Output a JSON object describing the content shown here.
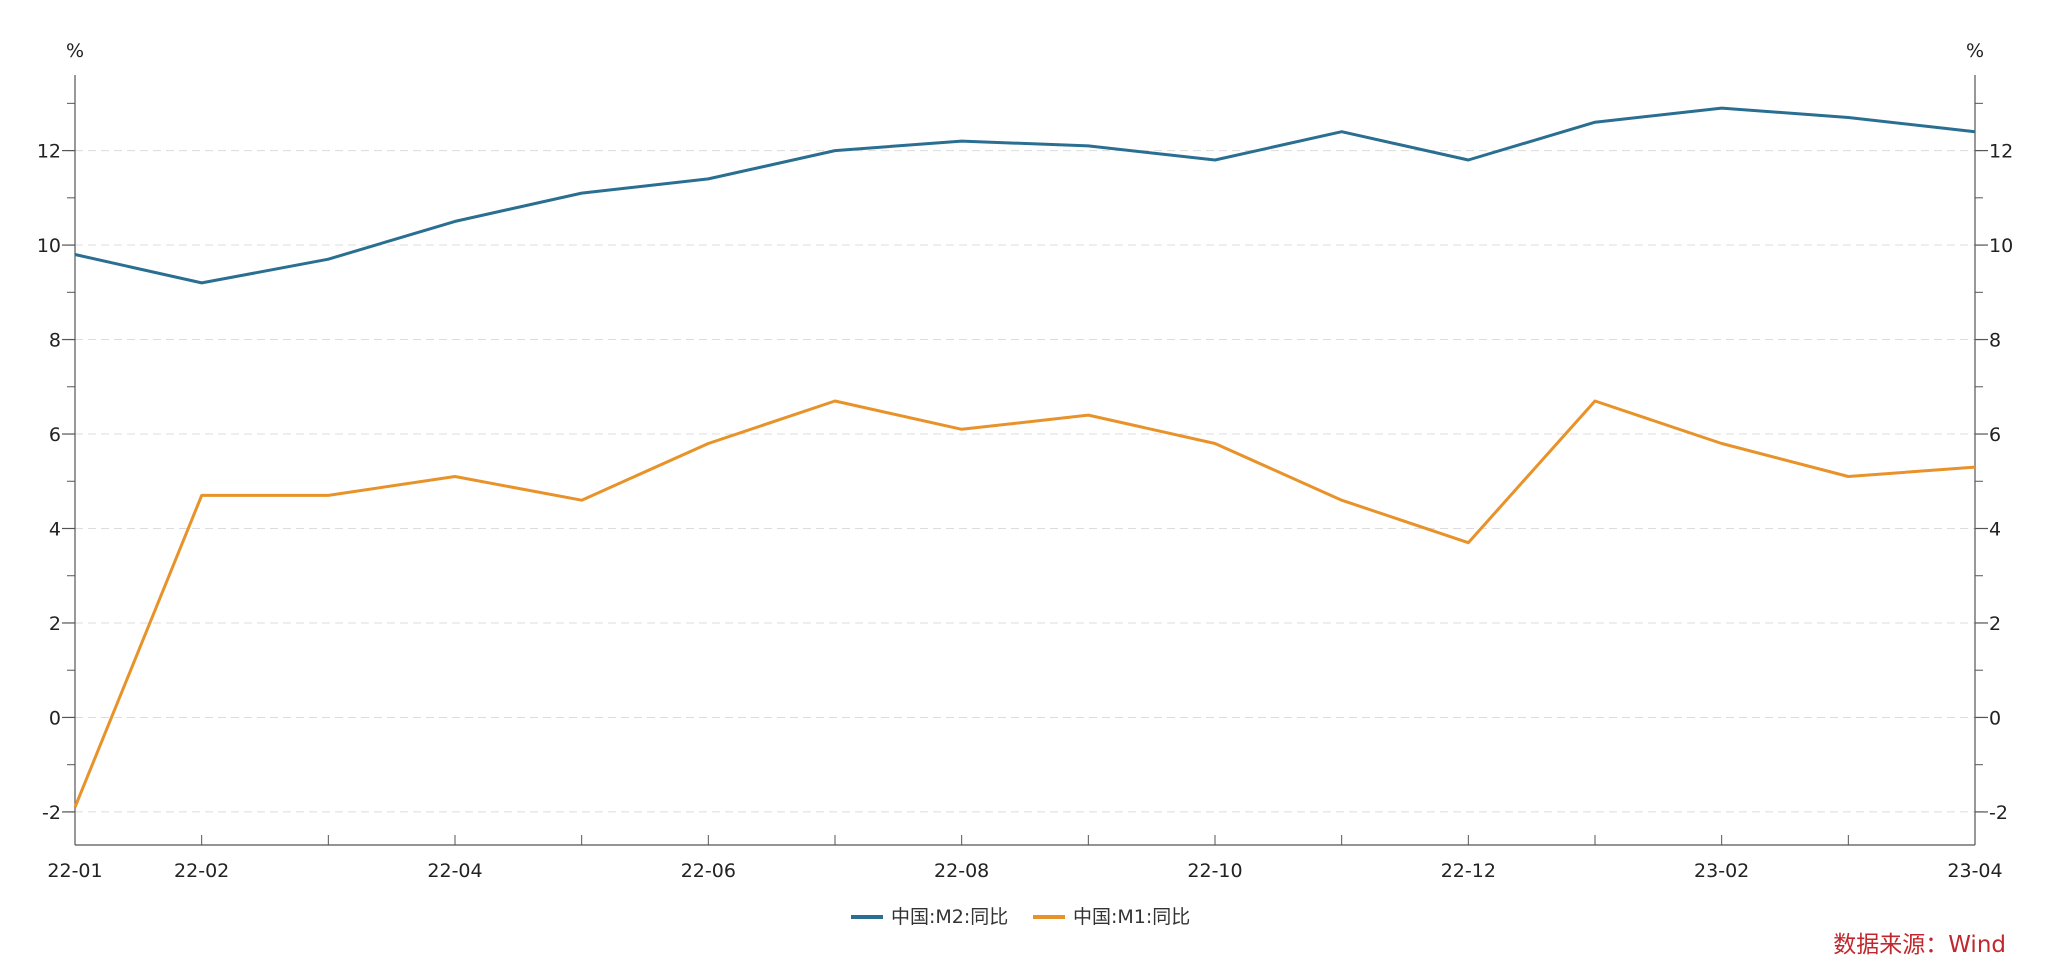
{
  "chart_data": {
    "type": "line",
    "title": "",
    "xlabel": "",
    "ylabel": "%",
    "y2label": "%",
    "ylim": [
      -2.7,
      13.6
    ],
    "yticks": [
      -2,
      0,
      2,
      4,
      6,
      8,
      10,
      12
    ],
    "grid": true,
    "legend_position": "bottom-center",
    "categories": [
      "22-01",
      "22-02",
      "22-03",
      "22-04",
      "22-05",
      "22-06",
      "22-07",
      "22-08",
      "22-09",
      "22-10",
      "22-11",
      "22-12",
      "23-01",
      "23-02",
      "23-03",
      "23-04"
    ],
    "tick_labels": [
      "22-01",
      "22-02",
      "22-04",
      "22-06",
      "22-08",
      "22-10",
      "22-12",
      "23-02",
      "23-04"
    ],
    "series": [
      {
        "name": "中国:M2:同比",
        "color": "#2a6f91",
        "values": [
          9.8,
          9.2,
          9.7,
          10.5,
          11.1,
          11.4,
          12.0,
          12.2,
          12.1,
          11.8,
          12.4,
          11.8,
          12.6,
          12.9,
          12.7,
          12.4
        ]
      },
      {
        "name": "中国:M1:同比",
        "color": "#e8922a",
        "values": [
          -1.9,
          4.7,
          4.7,
          5.1,
          4.6,
          5.8,
          6.7,
          6.1,
          6.4,
          5.8,
          4.6,
          3.7,
          6.7,
          5.8,
          5.1,
          5.3
        ]
      }
    ],
    "source": "数据来源：Wind"
  }
}
